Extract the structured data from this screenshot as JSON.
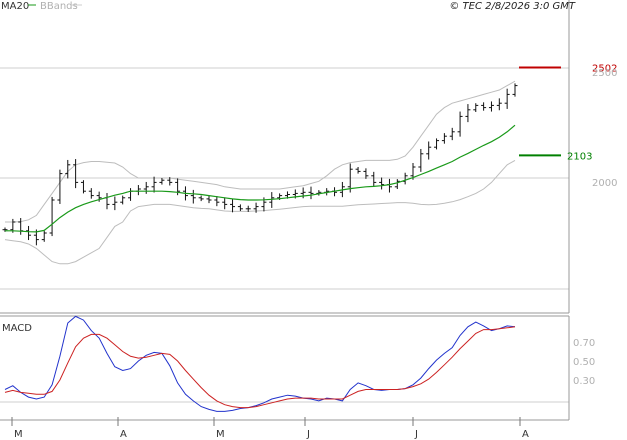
{
  "header": {
    "legend_ma20": "MA20",
    "legend_bbands": "BBands",
    "copyright": "© TEC 2/8/2026 3:0 GMT"
  },
  "colors": {
    "ma20": "#1a9a1a",
    "bbands": "#bdbdbd",
    "candles": "#111111",
    "resistance": "#c00000",
    "support": "#008000",
    "macd_line": "#2233cc",
    "signal_line": "#cc2222",
    "grid": "#cfcfcf"
  },
  "chart_data": [
    {
      "type": "candlestick",
      "title": "",
      "x_labels": [
        "M",
        "A",
        "M",
        "J",
        "J",
        "A"
      ],
      "y_ticks": [
        2000,
        2500
      ],
      "ylim": [
        1530,
        2620
      ],
      "grid": true,
      "legend": [
        "MA20",
        "BBands"
      ],
      "levels": [
        {
          "label": "2502",
          "value": 2502,
          "color": "#c00000"
        },
        {
          "label": "2103",
          "value": 2103,
          "color": "#008000"
        }
      ],
      "series": [
        {
          "kind": "ohlc",
          "values": [
            1765,
            1800,
            1760,
            1740,
            1720,
            1750,
            1900,
            2020,
            2060,
            1980,
            1940,
            1920,
            1910,
            1880,
            1890,
            1910,
            1940,
            1950,
            1960,
            1980,
            1990,
            1980,
            1940,
            1920,
            1910,
            1905,
            1900,
            1890,
            1880,
            1870,
            1860,
            1860,
            1870,
            1890,
            1910,
            1920,
            1925,
            1930,
            1935,
            1930,
            1935,
            1940,
            1935,
            1960,
            2040,
            2030,
            2010,
            1980,
            1970,
            1960,
            1985,
            2010,
            2050,
            2110,
            2140,
            2170,
            2190,
            2210,
            2280,
            2310,
            2330,
            2320,
            2330,
            2340,
            2380,
            2420
          ]
        },
        {
          "name": "MA20",
          "values": [
            1760,
            1760,
            1758,
            1756,
            1755,
            1762,
            1790,
            1820,
            1845,
            1865,
            1880,
            1892,
            1902,
            1912,
            1922,
            1930,
            1940,
            1940,
            1940,
            1940,
            1940,
            1938,
            1935,
            1930,
            1928,
            1925,
            1920,
            1915,
            1910,
            1905,
            1902,
            1900,
            1900,
            1901,
            1903,
            1906,
            1910,
            1914,
            1918,
            1922,
            1928,
            1934,
            1940,
            1946,
            1952,
            1956,
            1960,
            1962,
            1965,
            1970,
            1978,
            1990,
            2002,
            2016,
            2030,
            2045,
            2060,
            2075,
            2095,
            2112,
            2130,
            2148,
            2165,
            2185,
            2210,
            2240
          ]
        },
        {
          "name": "BBands upper",
          "values": [
            1800,
            1800,
            1802,
            1810,
            1830,
            1880,
            1930,
            1980,
            2030,
            2060,
            2070,
            2075,
            2075,
            2072,
            2068,
            2050,
            2020,
            2000,
            2000,
            2000,
            2000,
            2000,
            1995,
            1990,
            1985,
            1980,
            1975,
            1970,
            1960,
            1955,
            1950,
            1950,
            1950,
            1950,
            1950,
            1950,
            1955,
            1960,
            1965,
            1975,
            1985,
            2010,
            2040,
            2060,
            2070,
            2075,
            2080,
            2080,
            2080,
            2080,
            2085,
            2100,
            2140,
            2190,
            2240,
            2290,
            2320,
            2340,
            2350,
            2360,
            2370,
            2380,
            2390,
            2400,
            2420,
            2440
          ]
        },
        {
          "name": "BBands lower",
          "values": [
            1720,
            1715,
            1710,
            1700,
            1680,
            1650,
            1620,
            1610,
            1610,
            1620,
            1640,
            1660,
            1680,
            1730,
            1780,
            1800,
            1850,
            1870,
            1875,
            1880,
            1880,
            1880,
            1875,
            1870,
            1865,
            1862,
            1860,
            1855,
            1850,
            1848,
            1848,
            1848,
            1850,
            1852,
            1855,
            1858,
            1862,
            1866,
            1870,
            1872,
            1872,
            1872,
            1872,
            1872,
            1875,
            1878,
            1880,
            1882,
            1884,
            1886,
            1888,
            1888,
            1885,
            1880,
            1878,
            1880,
            1885,
            1892,
            1902,
            1915,
            1930,
            1950,
            1980,
            2020,
            2060,
            2080
          ]
        }
      ]
    },
    {
      "type": "line",
      "title": "MACD",
      "y_ticks": [
        "0.70",
        "0.50",
        "0.30"
      ],
      "ylim": [
        -0.13,
        1.0
      ],
      "series": [
        {
          "name": "MACD",
          "values": [
            0.2,
            0.24,
            0.17,
            0.12,
            0.1,
            0.12,
            0.25,
            0.55,
            0.9,
            0.97,
            0.93,
            0.82,
            0.74,
            0.58,
            0.44,
            0.4,
            0.42,
            0.5,
            0.56,
            0.59,
            0.58,
            0.45,
            0.27,
            0.15,
            0.08,
            0.02,
            -0.01,
            -0.03,
            -0.03,
            -0.02,
            0.0,
            0.01,
            0.03,
            0.06,
            0.1,
            0.12,
            0.14,
            0.13,
            0.11,
            0.1,
            0.08,
            0.11,
            0.1,
            0.08,
            0.2,
            0.27,
            0.24,
            0.2,
            0.19,
            0.2,
            0.2,
            0.21,
            0.25,
            0.32,
            0.42,
            0.51,
            0.58,
            0.64,
            0.77,
            0.86,
            0.91,
            0.87,
            0.82,
            0.84,
            0.87,
            0.86
          ]
        },
        {
          "name": "Signal",
          "values": [
            0.17,
            0.19,
            0.17,
            0.16,
            0.15,
            0.15,
            0.18,
            0.3,
            0.48,
            0.65,
            0.74,
            0.78,
            0.78,
            0.74,
            0.67,
            0.6,
            0.55,
            0.53,
            0.54,
            0.56,
            0.58,
            0.57,
            0.5,
            0.4,
            0.31,
            0.22,
            0.14,
            0.08,
            0.04,
            0.02,
            0.01,
            0.01,
            0.02,
            0.04,
            0.06,
            0.08,
            0.1,
            0.11,
            0.11,
            0.11,
            0.1,
            0.1,
            0.1,
            0.1,
            0.14,
            0.18,
            0.2,
            0.2,
            0.2,
            0.2,
            0.2,
            0.21,
            0.23,
            0.26,
            0.31,
            0.38,
            0.46,
            0.54,
            0.63,
            0.71,
            0.79,
            0.83,
            0.83,
            0.84,
            0.85,
            0.86
          ]
        }
      ]
    }
  ]
}
